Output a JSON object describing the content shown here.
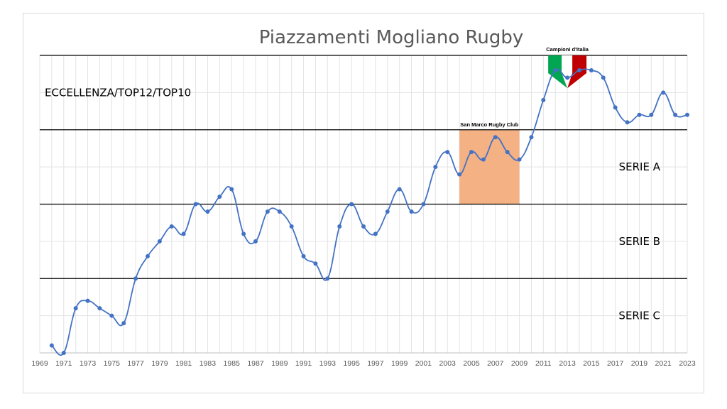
{
  "chart_data": {
    "type": "line",
    "title": "Piazzamenti Mogliano Rugby",
    "x_tick_labels": [
      "1969",
      "1971",
      "1973",
      "1975",
      "1977",
      "1979",
      "1981",
      "1983",
      "1985",
      "1987",
      "1989",
      "1991",
      "1993",
      "1995",
      "1997",
      "1999",
      "2001",
      "2003",
      "2005",
      "2007",
      "2009",
      "2011",
      "2013",
      "2015",
      "2017",
      "2019",
      "2021",
      "2023"
    ],
    "xlim": [
      1969,
      2023
    ],
    "ylim": [
      0,
      40
    ],
    "grid": true,
    "y_tick_labels_shown": false,
    "series": [
      {
        "color": "#4472c4",
        "x": [
          1970,
          1971,
          1972,
          1973,
          1974,
          1975,
          1976,
          1977,
          1978,
          1979,
          1980,
          1981,
          1982,
          1983,
          1984,
          1985,
          1986,
          1987,
          1988,
          1989,
          1990,
          1991,
          1992,
          1993,
          1994,
          1995,
          1996,
          1997,
          1998,
          1999,
          2000,
          2001,
          2002,
          2003,
          2004,
          2005,
          2006,
          2007,
          2008,
          2009,
          2010,
          2011,
          2012,
          2013,
          2014,
          2015,
          2016,
          2017,
          2018,
          2019,
          2020,
          2021,
          2022,
          2023
        ],
        "values": [
          1,
          0,
          6,
          7,
          6,
          5,
          4,
          10,
          13,
          15,
          17,
          16,
          20,
          19,
          21,
          22,
          16,
          15,
          19,
          19,
          17,
          13,
          12,
          10,
          17,
          20,
          17,
          16,
          19,
          22,
          19,
          20,
          25,
          27,
          24,
          27,
          26,
          29,
          27,
          26,
          29,
          34,
          38,
          37,
          38,
          38,
          37,
          33,
          31,
          32,
          32,
          35,
          32,
          32
        ]
      }
    ],
    "bands": [
      {
        "label": "SERIE C",
        "from": 0,
        "to": 10
      },
      {
        "label": "SERIE B",
        "from": 10,
        "to": 20
      },
      {
        "label": "SERIE A",
        "from": 20,
        "to": 30
      },
      {
        "label": "ECCELLENZA/TOP12/TOP10",
        "from": 30,
        "to": 40
      }
    ],
    "highlight": {
      "label": "San Marco Rugby Club",
      "x_from": 2004,
      "x_to": 2009,
      "y_from": 20,
      "y_to": 30,
      "color": "#f4b183"
    },
    "annotation": {
      "label": "Campioni d'Italia",
      "x": 2013,
      "colors": [
        "#00a651",
        "#ffffff",
        "#c00000"
      ]
    }
  }
}
